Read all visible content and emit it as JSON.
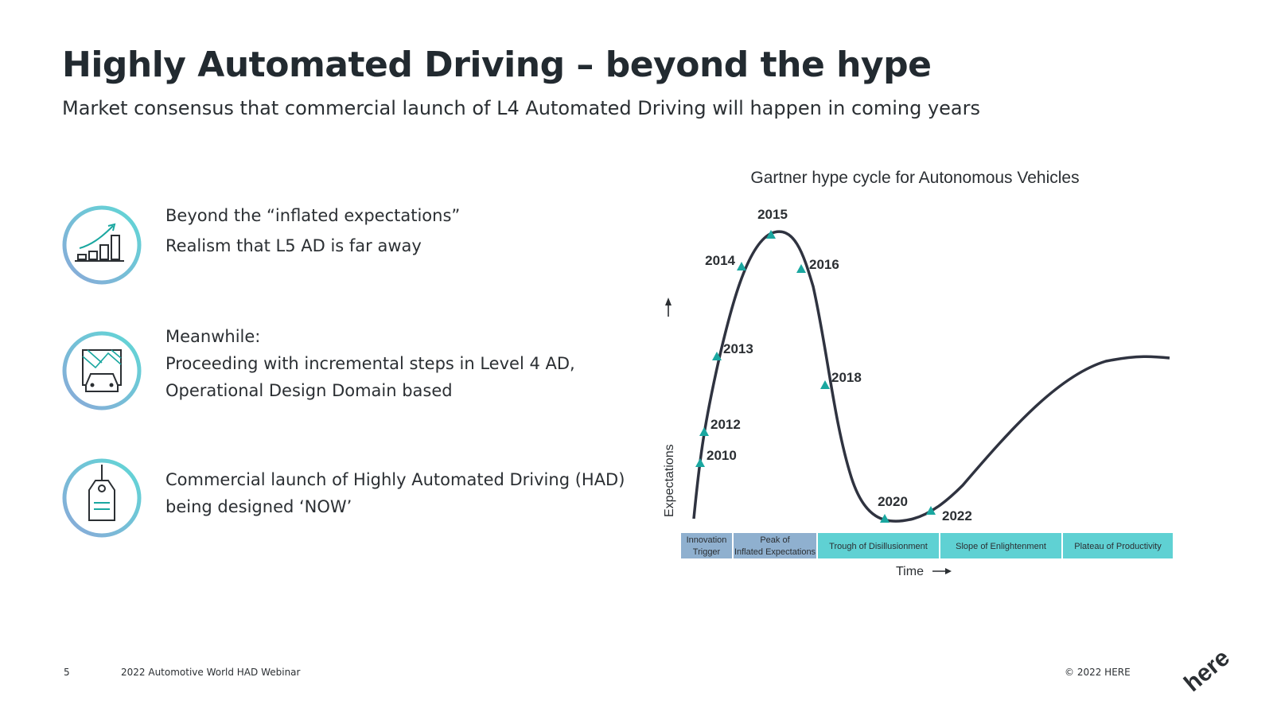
{
  "slide": {
    "title": "Highly Automated Driving – beyond the hype",
    "subtitle": "Market consensus that commercial launch of L4 Automated Driving will happen in coming years"
  },
  "bullets": [
    {
      "icon": "growth-chart-icon",
      "lines": [
        "Beyond the “inflated expectations”",
        "Realism that L5 AD is far away"
      ]
    },
    {
      "icon": "car-map-icon",
      "lines": [
        "Meanwhile:",
        "Proceeding with incremental steps in Level 4 AD,",
        "Operational Design Domain based"
      ]
    },
    {
      "icon": "price-tag-icon",
      "lines": [
        "Commercial launch of Highly Automated Driving (HAD)",
        "being designed ‘NOW’"
      ]
    }
  ],
  "chart_data": {
    "type": "line",
    "title": "Gartner hype cycle for Autonomous Vehicles",
    "xlabel": "Time",
    "ylabel": "Expectations",
    "markers": [
      "2010",
      "2012",
      "2013",
      "2014",
      "2015",
      "2016",
      "2018",
      "2020",
      "2022"
    ],
    "phases": [
      "Innovation Trigger",
      "Peak of Inflated Expectations",
      "Trough of Disillusionment",
      "Slope of Enlightenment",
      "Plateau of Productivity"
    ],
    "colors": {
      "curve": "#2f3340",
      "marker": "#1aa7a0",
      "phase_blue": "#8fb0cf",
      "phase_teal": "#5fd1d3"
    }
  },
  "footer": {
    "page_number": "5",
    "event": "2022 Automotive World HAD Webinar",
    "copyright": "© 2022 HERE",
    "logo": "here"
  }
}
